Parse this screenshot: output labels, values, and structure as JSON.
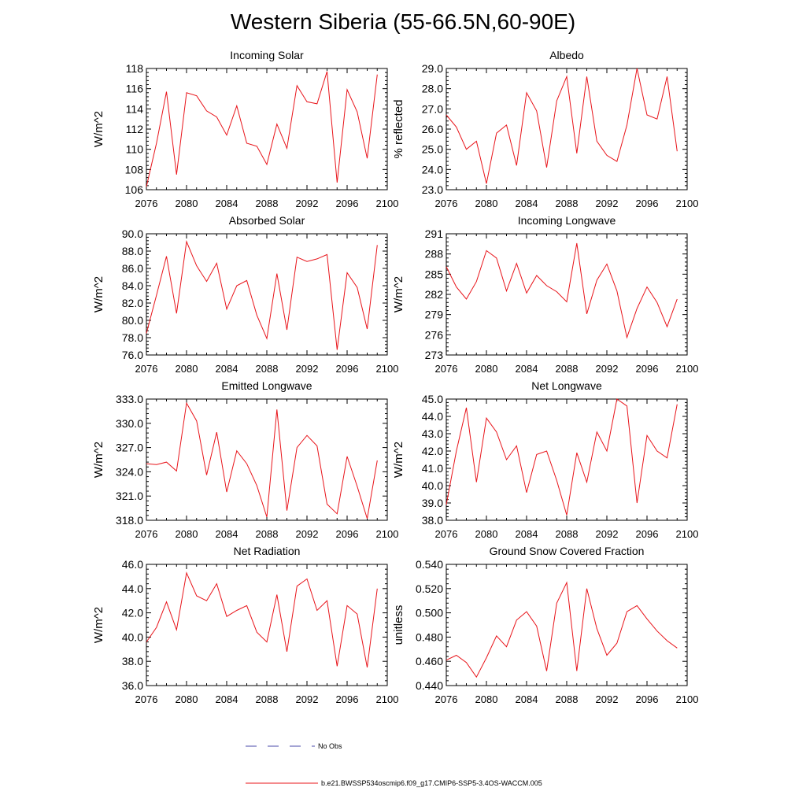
{
  "title": "Western Siberia (55-66.5N,60-90E)",
  "legend": {
    "obs_label": "No Obs",
    "obs_color": "#4a4aa8",
    "model_label": "b.e21.BWSSP534oscmip6.f09_g17.CMIP6-SSP5-3.4OS-WACCM.005",
    "model_color": "#e8141a"
  },
  "chart_data": [
    {
      "type": "line",
      "title": "Incoming Solar",
      "ylabel": "W/m^2",
      "xlim": [
        2076,
        2100
      ],
      "xticks": [
        "2076",
        "2080",
        "2084",
        "2088",
        "2092",
        "2096",
        "2100"
      ],
      "ylim": [
        106,
        118
      ],
      "yticks": [
        "106",
        "108",
        "110",
        "112",
        "114",
        "116",
        "118"
      ],
      "x": [
        2076,
        2077,
        2078,
        2079,
        2080,
        2081,
        2082,
        2083,
        2084,
        2085,
        2086,
        2087,
        2088,
        2089,
        2090,
        2091,
        2092,
        2093,
        2094,
        2095,
        2096,
        2097,
        2098,
        2099
      ],
      "y": [
        106.3,
        110.6,
        115.7,
        107.5,
        115.6,
        115.3,
        113.8,
        113.2,
        111.4,
        114.3,
        110.6,
        110.3,
        108.5,
        112.5,
        110.1,
        116.3,
        114.7,
        114.5,
        117.7,
        106.7,
        115.9,
        113.7,
        109.1,
        117.4
      ]
    },
    {
      "type": "line",
      "title": "Albedo",
      "ylabel": "% reflected",
      "xlim": [
        2076,
        2100
      ],
      "xticks": [
        "2076",
        "2080",
        "2084",
        "2088",
        "2092",
        "2096",
        "2100"
      ],
      "ylim": [
        23.0,
        29.0
      ],
      "yticks": [
        "23.0",
        "24.0",
        "25.0",
        "26.0",
        "27.0",
        "28.0",
        "29.0"
      ],
      "x": [
        2076,
        2077,
        2078,
        2079,
        2080,
        2081,
        2082,
        2083,
        2084,
        2085,
        2086,
        2087,
        2088,
        2089,
        2090,
        2091,
        2092,
        2093,
        2094,
        2095,
        2096,
        2097,
        2098,
        2099
      ],
      "y": [
        26.7,
        26.1,
        25.0,
        25.4,
        23.3,
        25.8,
        26.2,
        24.2,
        27.8,
        26.9,
        24.1,
        27.4,
        28.6,
        24.8,
        28.6,
        25.4,
        24.7,
        24.4,
        26.2,
        29.0,
        26.7,
        26.5,
        28.6,
        24.9
      ]
    },
    {
      "type": "line",
      "title": "Absorbed Solar",
      "ylabel": "W/m^2",
      "xlim": [
        2076,
        2100
      ],
      "xticks": [
        "2076",
        "2080",
        "2084",
        "2088",
        "2092",
        "2096",
        "2100"
      ],
      "ylim": [
        76.0,
        90.0
      ],
      "yticks": [
        "76.0",
        "78.0",
        "80.0",
        "82.0",
        "84.0",
        "86.0",
        "88.0",
        "90.0"
      ],
      "x": [
        2076,
        2077,
        2078,
        2079,
        2080,
        2081,
        2082,
        2083,
        2084,
        2085,
        2086,
        2087,
        2088,
        2089,
        2090,
        2091,
        2092,
        2093,
        2094,
        2095,
        2096,
        2097,
        2098,
        2099
      ],
      "y": [
        78.5,
        82.9,
        87.4,
        80.8,
        89.1,
        86.3,
        84.5,
        86.6,
        81.3,
        84.0,
        84.6,
        80.6,
        77.9,
        85.4,
        78.9,
        87.3,
        86.8,
        87.1,
        87.6,
        76.6,
        85.5,
        83.8,
        79.0,
        88.7
      ]
    },
    {
      "type": "line",
      "title": "Incoming Longwave",
      "ylabel": "W/m^2",
      "xlim": [
        2076,
        2100
      ],
      "xticks": [
        "2076",
        "2080",
        "2084",
        "2088",
        "2092",
        "2096",
        "2100"
      ],
      "ylim": [
        273,
        291
      ],
      "yticks": [
        "273",
        "276",
        "279",
        "282",
        "285",
        "288",
        "291"
      ],
      "x": [
        2076,
        2077,
        2078,
        2079,
        2080,
        2081,
        2082,
        2083,
        2084,
        2085,
        2086,
        2087,
        2088,
        2089,
        2090,
        2091,
        2092,
        2093,
        2094,
        2095,
        2096,
        2097,
        2098,
        2099
      ],
      "y": [
        286.1,
        283.1,
        281.3,
        283.9,
        288.5,
        287.4,
        282.5,
        286.6,
        282.2,
        284.8,
        283.3,
        282.4,
        280.9,
        289.6,
        279.1,
        284.1,
        286.5,
        282.5,
        275.6,
        279.9,
        283.1,
        280.8,
        277.2,
        281.3
      ]
    },
    {
      "type": "line",
      "title": "Emitted Longwave",
      "ylabel": "W/m^2",
      "xlim": [
        2076,
        2100
      ],
      "xticks": [
        "2076",
        "2080",
        "2084",
        "2088",
        "2092",
        "2096",
        "2100"
      ],
      "ylim": [
        318.0,
        333.0
      ],
      "yticks": [
        "318.0",
        "321.0",
        "324.0",
        "327.0",
        "330.0",
        "333.0"
      ],
      "x": [
        2076,
        2077,
        2078,
        2079,
        2080,
        2081,
        2082,
        2083,
        2084,
        2085,
        2086,
        2087,
        2088,
        2089,
        2090,
        2091,
        2092,
        2093,
        2094,
        2095,
        2096,
        2097,
        2098,
        2099
      ],
      "y": [
        325.0,
        324.9,
        325.2,
        324.1,
        332.5,
        330.3,
        323.6,
        328.9,
        321.5,
        326.6,
        325.0,
        322.3,
        318.4,
        331.7,
        319.2,
        327.0,
        328.5,
        327.2,
        320.0,
        318.8,
        325.9,
        322.2,
        318.2,
        325.4
      ]
    },
    {
      "type": "line",
      "title": "Net Longwave",
      "ylabel": "W/m^2",
      "xlim": [
        2076,
        2100
      ],
      "xticks": [
        "2076",
        "2080",
        "2084",
        "2088",
        "2092",
        "2096",
        "2100"
      ],
      "ylim": [
        38.0,
        45.0
      ],
      "yticks": [
        "38.0",
        "39.0",
        "40.0",
        "41.0",
        "42.0",
        "43.0",
        "44.0",
        "45.0"
      ],
      "x": [
        2076,
        2077,
        2078,
        2079,
        2080,
        2081,
        2082,
        2083,
        2084,
        2085,
        2086,
        2087,
        2088,
        2089,
        2090,
        2091,
        2092,
        2093,
        2094,
        2095,
        2096,
        2097,
        2098,
        2099
      ],
      "y": [
        38.9,
        42.0,
        44.5,
        40.2,
        43.9,
        43.1,
        41.5,
        42.3,
        39.6,
        41.8,
        42.0,
        40.3,
        38.3,
        41.9,
        40.2,
        43.1,
        42.0,
        45.0,
        44.6,
        39.0,
        42.9,
        42.0,
        41.6,
        44.7
      ]
    },
    {
      "type": "line",
      "title": "Net Radiation",
      "ylabel": "W/m^2",
      "xlim": [
        2076,
        2100
      ],
      "xticks": [
        "2076",
        "2080",
        "2084",
        "2088",
        "2092",
        "2096",
        "2100"
      ],
      "ylim": [
        36.0,
        46.0
      ],
      "yticks": [
        "36.0",
        "38.0",
        "40.0",
        "42.0",
        "44.0",
        "46.0"
      ],
      "x": [
        2076,
        2077,
        2078,
        2079,
        2080,
        2081,
        2082,
        2083,
        2084,
        2085,
        2086,
        2087,
        2088,
        2089,
        2090,
        2091,
        2092,
        2093,
        2094,
        2095,
        2096,
        2097,
        2098,
        2099
      ],
      "y": [
        39.6,
        40.8,
        42.9,
        40.6,
        45.3,
        43.4,
        43.0,
        44.4,
        41.7,
        42.2,
        42.6,
        40.4,
        39.6,
        43.5,
        38.8,
        44.2,
        44.8,
        42.2,
        43.0,
        37.6,
        42.6,
        41.9,
        37.5,
        44.0
      ]
    },
    {
      "type": "line",
      "title": "Ground Snow Covered Fraction",
      "ylabel": "unitless",
      "xlim": [
        2076,
        2100
      ],
      "xticks": [
        "2076",
        "2080",
        "2084",
        "2088",
        "2092",
        "2096",
        "2100"
      ],
      "ylim": [
        0.44,
        0.54
      ],
      "yticks": [
        "0.440",
        "0.460",
        "0.480",
        "0.500",
        "0.520",
        "0.540"
      ],
      "x": [
        2076,
        2077,
        2078,
        2079,
        2080,
        2081,
        2082,
        2083,
        2084,
        2085,
        2086,
        2087,
        2088,
        2089,
        2090,
        2091,
        2092,
        2093,
        2094,
        2095,
        2096,
        2097,
        2098,
        2099
      ],
      "y": [
        0.461,
        0.465,
        0.459,
        0.447,
        0.463,
        0.481,
        0.472,
        0.494,
        0.501,
        0.489,
        0.452,
        0.508,
        0.525,
        0.452,
        0.52,
        0.487,
        0.465,
        0.475,
        0.501,
        0.506,
        0.495,
        0.485,
        0.477,
        0.471
      ]
    }
  ]
}
